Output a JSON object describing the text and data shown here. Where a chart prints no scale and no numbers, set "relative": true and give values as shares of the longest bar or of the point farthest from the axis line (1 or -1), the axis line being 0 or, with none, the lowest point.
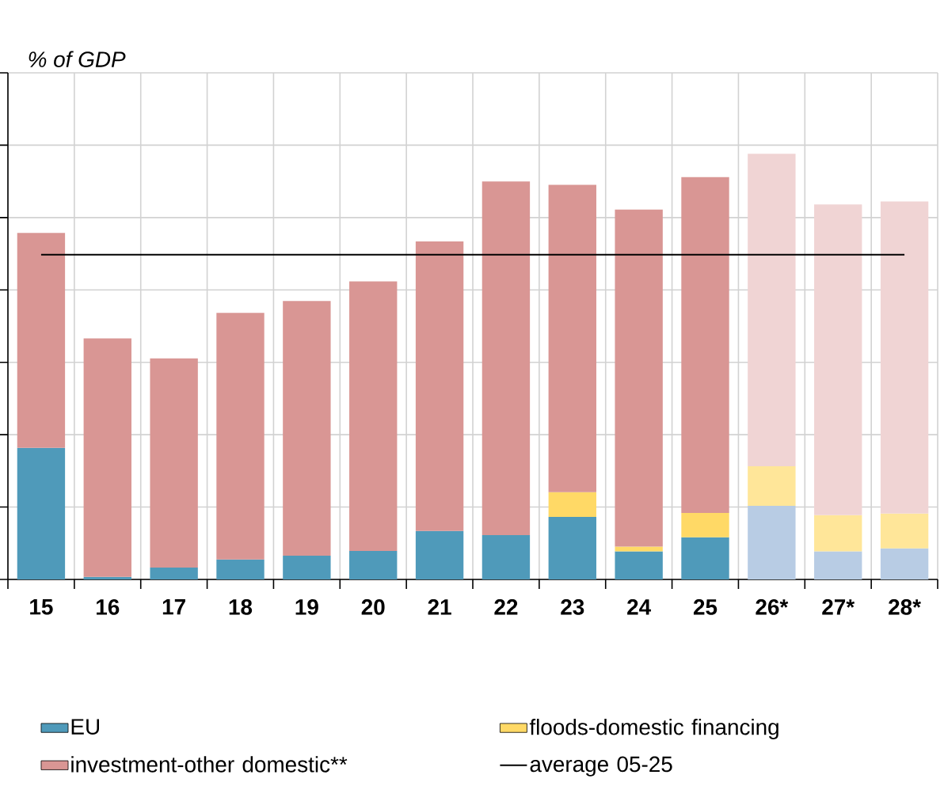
{
  "chart_data": {
    "type": "bar",
    "stacked": true,
    "relative": true,
    "ylabel": "% of GDP",
    "grid": true,
    "legend": "bottom",
    "categories": [
      "15",
      "16",
      "17",
      "18",
      "19",
      "20",
      "21",
      "22",
      "23",
      "24",
      "25",
      "26*",
      "27*",
      "28*"
    ],
    "series": [
      {
        "name": "EU",
        "color": "#4f9aba",
        "colors": [
          "#4f9aba",
          "#4f9aba",
          "#4f9aba",
          "#4f9aba",
          "#4f9aba",
          "#4f9aba",
          "#4f9aba",
          "#4f9aba",
          "#4f9aba",
          "#4f9aba",
          "#4f9aba",
          "#b8cce4",
          "#b8cce4",
          "#b8cce4"
        ],
        "values": [
          0.309,
          0.006,
          0.028,
          0.047,
          0.056,
          0.067,
          0.114,
          0.104,
          0.147,
          0.066,
          0.099,
          0.173,
          0.066,
          0.073
        ]
      },
      {
        "name": "floods-domestic financing",
        "color": "#ffd966",
        "colors": [
          "#ffd966",
          "#ffd966",
          "#ffd966",
          "#ffd966",
          "#ffd966",
          "#ffd966",
          "#ffd966",
          "#ffd966",
          "#ffd966",
          "#ffd966",
          "#ffd966",
          "#ffe699",
          "#ffe699",
          "#ffe699"
        ],
        "values": [
          null,
          null,
          null,
          null,
          null,
          null,
          null,
          null,
          0.058,
          0.011,
          0.057,
          0.093,
          0.085,
          0.082
        ]
      },
      {
        "name": "investment-other domestic**",
        "color": "#d99694",
        "colors": [
          "#d99694",
          "#d99694",
          "#d99694",
          "#d99694",
          "#d99694",
          "#d99694",
          "#d99694",
          "#d99694",
          "#d99694",
          "#d99694",
          "#d99694",
          "#f0d4d4",
          "#f0d4d4",
          "#f0d4d4"
        ],
        "values": [
          0.505,
          0.56,
          0.491,
          0.579,
          0.598,
          0.633,
          0.68,
          0.831,
          0.722,
          0.792,
          0.789,
          0.734,
          0.73,
          0.733
        ]
      }
    ],
    "ref_lines": [
      {
        "axis": "y",
        "value": 0.763,
        "label": "average 05-25",
        "color": "#000000"
      }
    ]
  }
}
